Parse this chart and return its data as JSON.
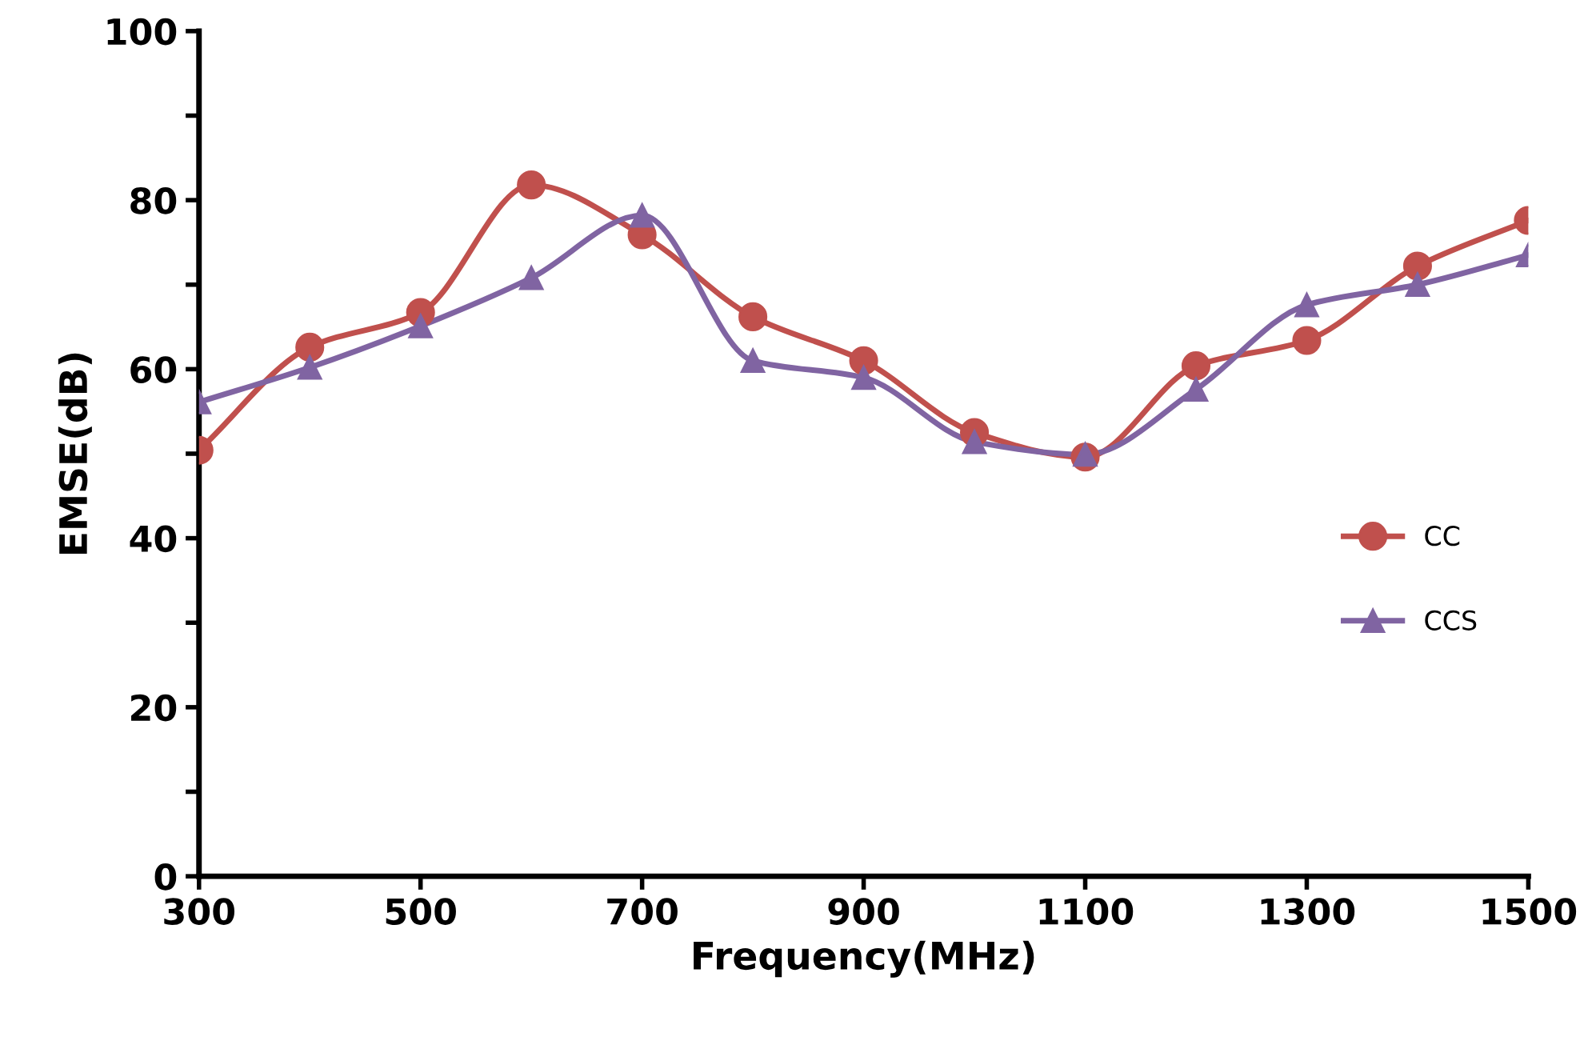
{
  "chart_data": {
    "type": "line",
    "xlabel": "Frequency(MHz)",
    "ylabel": "EMSE(dB)",
    "x": [
      300,
      400,
      500,
      600,
      700,
      800,
      900,
      1000,
      1100,
      1200,
      1300,
      1400,
      1500
    ],
    "series": [
      {
        "name": "CC",
        "color": "#c0504d",
        "marker": "circle",
        "values": [
          50.4,
          62.6,
          66.7,
          81.8,
          75.9,
          66.2,
          61.0,
          52.5,
          49.6,
          60.4,
          63.4,
          72.2,
          77.6
        ]
      },
      {
        "name": "CCS",
        "color": "#8064a2",
        "marker": "triangle",
        "values": [
          56.1,
          60.2,
          65.1,
          70.8,
          78.2,
          61.0,
          59.0,
          51.4,
          49.9,
          57.6,
          67.6,
          70.0,
          73.5
        ]
      }
    ],
    "xlim": [
      300,
      1500
    ],
    "xticks": [
      300,
      500,
      700,
      900,
      1100,
      1300,
      1500
    ],
    "ylim": [
      0,
      100
    ],
    "yticks": [
      0,
      {
        "value": 10,
        "label": null
      },
      20,
      {
        "value": 30,
        "label": null
      },
      40,
      {
        "value": 50,
        "label": null
      },
      60,
      {
        "value": 70,
        "label": null
      },
      80,
      {
        "value": 90,
        "label": null
      },
      100
    ],
    "grid": false,
    "legend": "right",
    "line_style": "solid"
  }
}
